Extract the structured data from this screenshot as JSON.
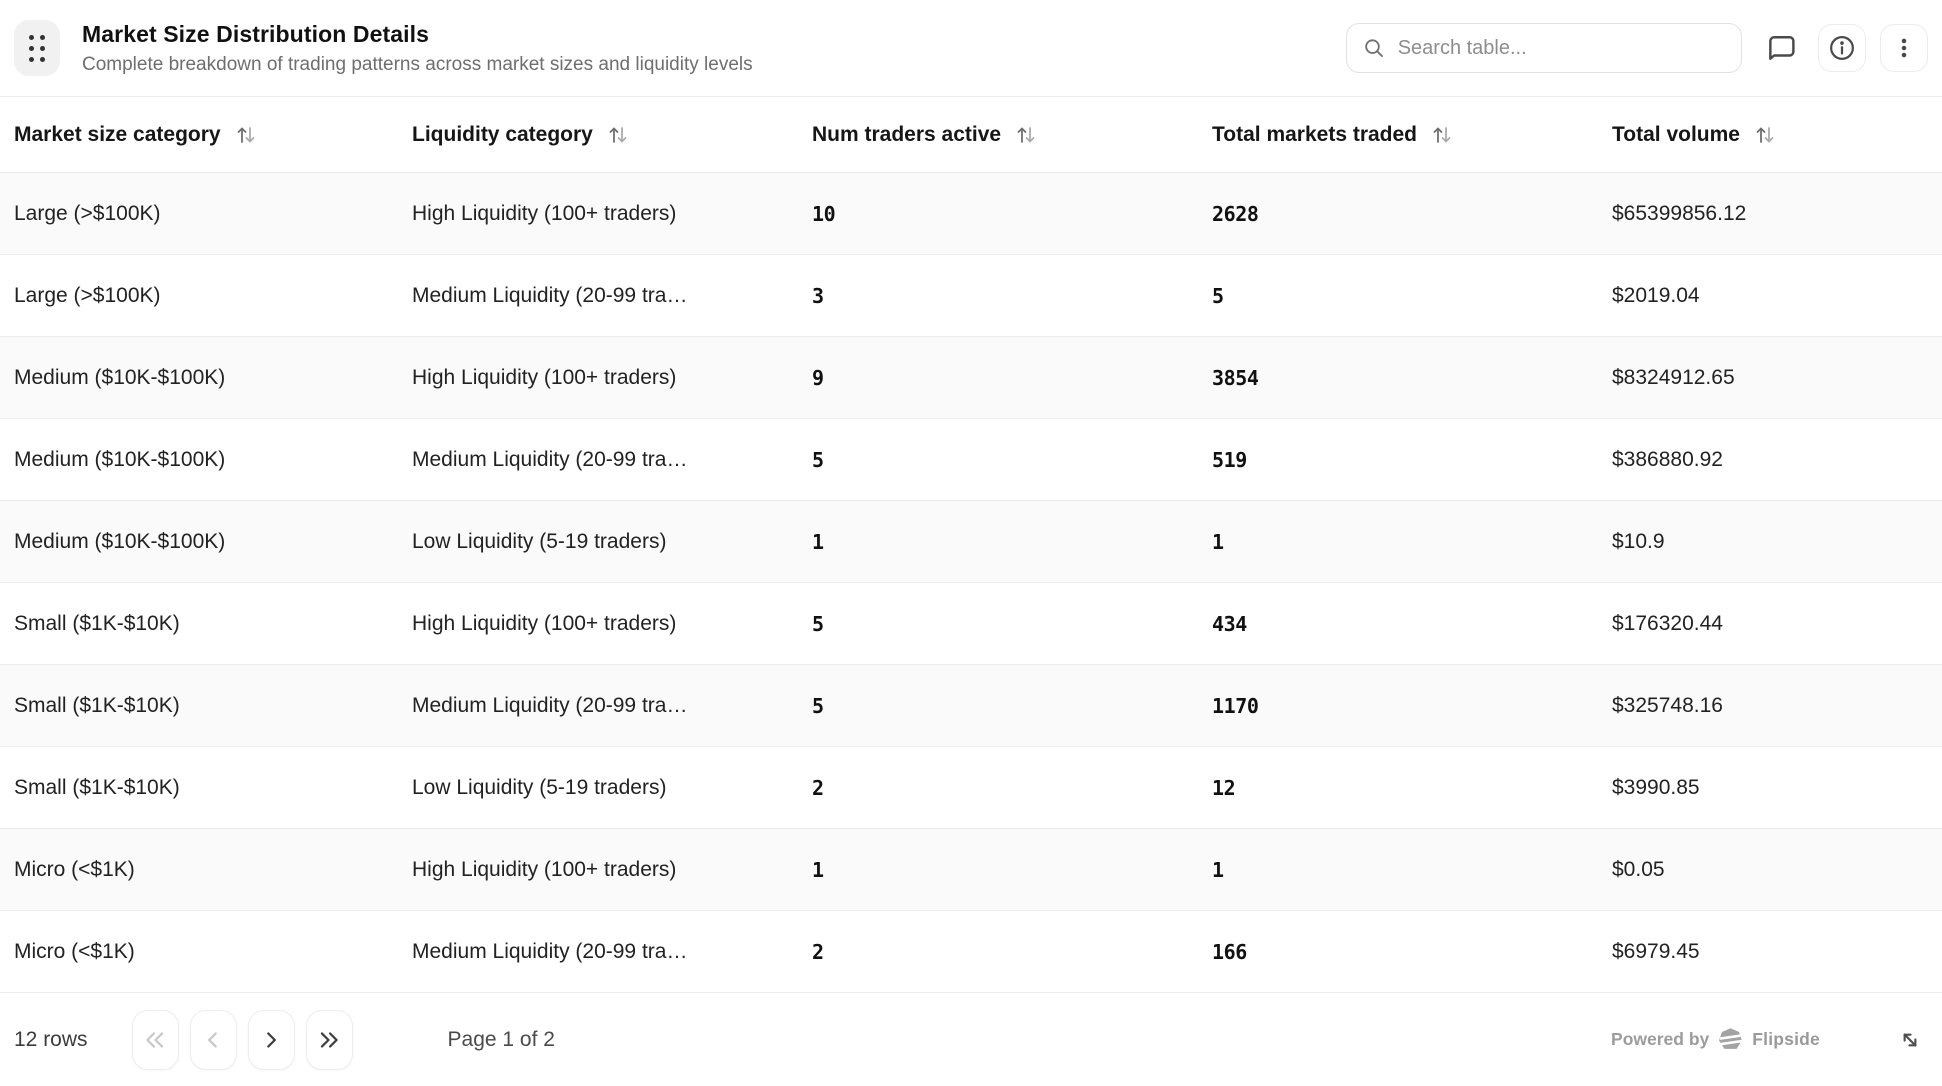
{
  "header": {
    "title": "Market Size Distribution Details",
    "subtitle": "Complete breakdown of trading patterns across market sizes and liquidity levels",
    "search_placeholder": "Search table...",
    "search_value": "",
    "icons": {
      "drag_handle": "grip-dots-icon",
      "search": "search-icon",
      "comment": "comment-bubble-icon",
      "info": "info-circle-icon",
      "more": "kebab-menu-icon"
    }
  },
  "table": {
    "columns": [
      {
        "label": "Market size category",
        "sort_icon": "sort-arrows-icon"
      },
      {
        "label": "Liquidity category",
        "sort_icon": "sort-arrows-icon"
      },
      {
        "label": "Num traders active",
        "sort_icon": "sort-arrows-icon"
      },
      {
        "label": "Total markets traded",
        "sort_icon": "sort-arrows-icon"
      },
      {
        "label": "Total volume",
        "sort_icon": "sort-arrows-icon"
      }
    ],
    "rows": [
      {
        "market_size": "Large (>$100K)",
        "liquidity": "High Liquidity (100+ traders)",
        "num_traders": "10",
        "markets_traded": "2628",
        "volume": "$65399856.12"
      },
      {
        "market_size": "Large (>$100K)",
        "liquidity": "Medium Liquidity (20-99 tra…",
        "num_traders": "3",
        "markets_traded": "5",
        "volume": "$2019.04"
      },
      {
        "market_size": "Medium ($10K-$100K)",
        "liquidity": "High Liquidity (100+ traders)",
        "num_traders": "9",
        "markets_traded": "3854",
        "volume": "$8324912.65"
      },
      {
        "market_size": "Medium ($10K-$100K)",
        "liquidity": "Medium Liquidity (20-99 tra…",
        "num_traders": "5",
        "markets_traded": "519",
        "volume": "$386880.92"
      },
      {
        "market_size": "Medium ($10K-$100K)",
        "liquidity": "Low Liquidity (5-19 traders)",
        "num_traders": "1",
        "markets_traded": "1",
        "volume": "$10.9"
      },
      {
        "market_size": "Small ($1K-$10K)",
        "liquidity": "High Liquidity (100+ traders)",
        "num_traders": "5",
        "markets_traded": "434",
        "volume": "$176320.44"
      },
      {
        "market_size": "Small ($1K-$10K)",
        "liquidity": "Medium Liquidity (20-99 tra…",
        "num_traders": "5",
        "markets_traded": "1170",
        "volume": "$325748.16"
      },
      {
        "market_size": "Small ($1K-$10K)",
        "liquidity": "Low Liquidity (5-19 traders)",
        "num_traders": "2",
        "markets_traded": "12",
        "volume": "$3990.85"
      },
      {
        "market_size": "Micro (<$1K)",
        "liquidity": "High Liquidity (100+ traders)",
        "num_traders": "1",
        "markets_traded": "1",
        "volume": "$0.05"
      },
      {
        "market_size": "Micro (<$1K)",
        "liquidity": "Medium Liquidity (20-99 tra…",
        "num_traders": "2",
        "markets_traded": "166",
        "volume": "$6979.45"
      }
    ]
  },
  "footer": {
    "rows_label": "12 rows",
    "page_label": "Page 1 of 2",
    "powered_by_label": "Powered by",
    "brand_label": "Flipside",
    "icons": {
      "first_page": "first-page-icon",
      "prev_page": "prev-page-icon",
      "next_page": "next-page-icon",
      "last_page": "last-page-icon",
      "brand": "flipside-logo-icon",
      "expand": "expand-diagonal-icon"
    }
  },
  "colors": {
    "row_stripe": "#fafafa",
    "divider": "#ececec",
    "muted_text": "#6e6e6e",
    "disabled_icon": "#c7c7c7",
    "enabled_icon": "#3d3d3d"
  }
}
